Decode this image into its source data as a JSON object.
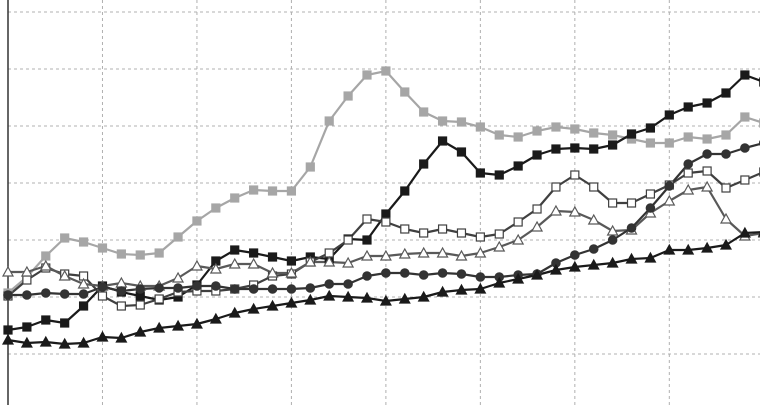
{
  "chart_data": {
    "type": "line",
    "x": [
      0,
      1,
      2,
      3,
      4,
      5,
      6,
      7,
      8,
      9,
      10,
      11,
      12,
      13,
      14,
      15,
      16,
      17,
      18,
      19,
      20,
      21,
      22,
      23,
      24,
      25,
      26,
      27,
      28,
      29,
      30,
      31,
      32,
      33,
      34,
      35,
      36,
      37,
      38,
      39,
      40
    ],
    "xlim": [
      0,
      39.8
    ],
    "xticks": [
      5,
      10,
      15,
      20,
      25,
      30,
      35
    ],
    "ylim": [
      -51,
      354
    ],
    "yticks": [
      0,
      57,
      114,
      171,
      228,
      285,
      342
    ],
    "grid": true,
    "series": [
      {
        "color": "#a6a6a6",
        "marker": "square",
        "filled": true,
        "values": [
          61,
          77,
          98,
          116,
          112,
          106,
          100,
          99,
          101,
          117,
          133,
          146,
          156,
          164,
          163,
          163,
          187,
          233,
          258,
          279,
          283,
          262,
          242,
          233,
          232,
          227,
          219,
          217,
          223,
          227,
          225,
          221,
          219,
          215,
          211,
          211,
          217,
          215,
          219,
          237,
          231
        ]
      },
      {
        "color": "#1a1a1a",
        "marker": "square",
        "filled": true,
        "values": [
          24,
          27,
          34,
          31,
          48,
          68,
          62,
          58,
          54,
          57,
          69,
          93,
          104,
          101,
          97,
          93,
          97,
          95,
          115,
          114,
          140,
          163,
          190,
          213,
          202,
          181,
          179,
          188,
          199,
          205,
          206,
          205,
          209,
          220,
          226,
          239,
          247,
          251,
          261,
          279,
          272
        ]
      },
      {
        "color": "#404040",
        "marker": "square",
        "filled": false,
        "values": [
          58,
          74,
          86,
          80,
          78,
          58,
          48,
          49,
          55,
          62,
          63,
          63,
          65,
          69,
          78,
          80,
          92,
          101,
          114,
          135,
          132,
          125,
          121,
          125,
          121,
          117,
          120,
          132,
          145,
          167,
          179,
          167,
          151,
          151,
          160,
          169,
          181,
          183,
          166,
          174,
          182
        ]
      },
      {
        "color": "#595959",
        "marker": "triangle",
        "filled": false,
        "values": [
          82,
          82,
          88,
          78,
          70,
          68,
          71,
          68,
          68,
          76,
          88,
          85,
          90,
          90,
          81,
          81,
          92,
          92,
          91,
          98,
          98,
          100,
          101,
          101,
          98,
          101,
          107,
          114,
          127,
          143,
          142,
          134,
          123,
          124,
          141,
          153,
          164,
          167,
          135,
          118,
          121
        ]
      },
      {
        "color": "#333333",
        "marker": "circle",
        "filled": true,
        "values": [
          59,
          59,
          61,
          60,
          60,
          67,
          63,
          65,
          66,
          66,
          68,
          68,
          65,
          65,
          65,
          65,
          66,
          70,
          70,
          78,
          81,
          81,
          79,
          81,
          80,
          77,
          77,
          79,
          80,
          91,
          99,
          105,
          114,
          126,
          146,
          168,
          190,
          200,
          200,
          206,
          211
        ]
      },
      {
        "color": "#1a1a1a",
        "marker": "triangle",
        "filled": true,
        "values": [
          14,
          11,
          12,
          10,
          11,
          17,
          16,
          22,
          26,
          28,
          30,
          35,
          41,
          45,
          48,
          51,
          54,
          58,
          57,
          56,
          53,
          55,
          57,
          62,
          64,
          65,
          71,
          75,
          79,
          84,
          87,
          89,
          91,
          95,
          96,
          104,
          104,
          106,
          109,
          121,
          122
        ]
      }
    ]
  }
}
